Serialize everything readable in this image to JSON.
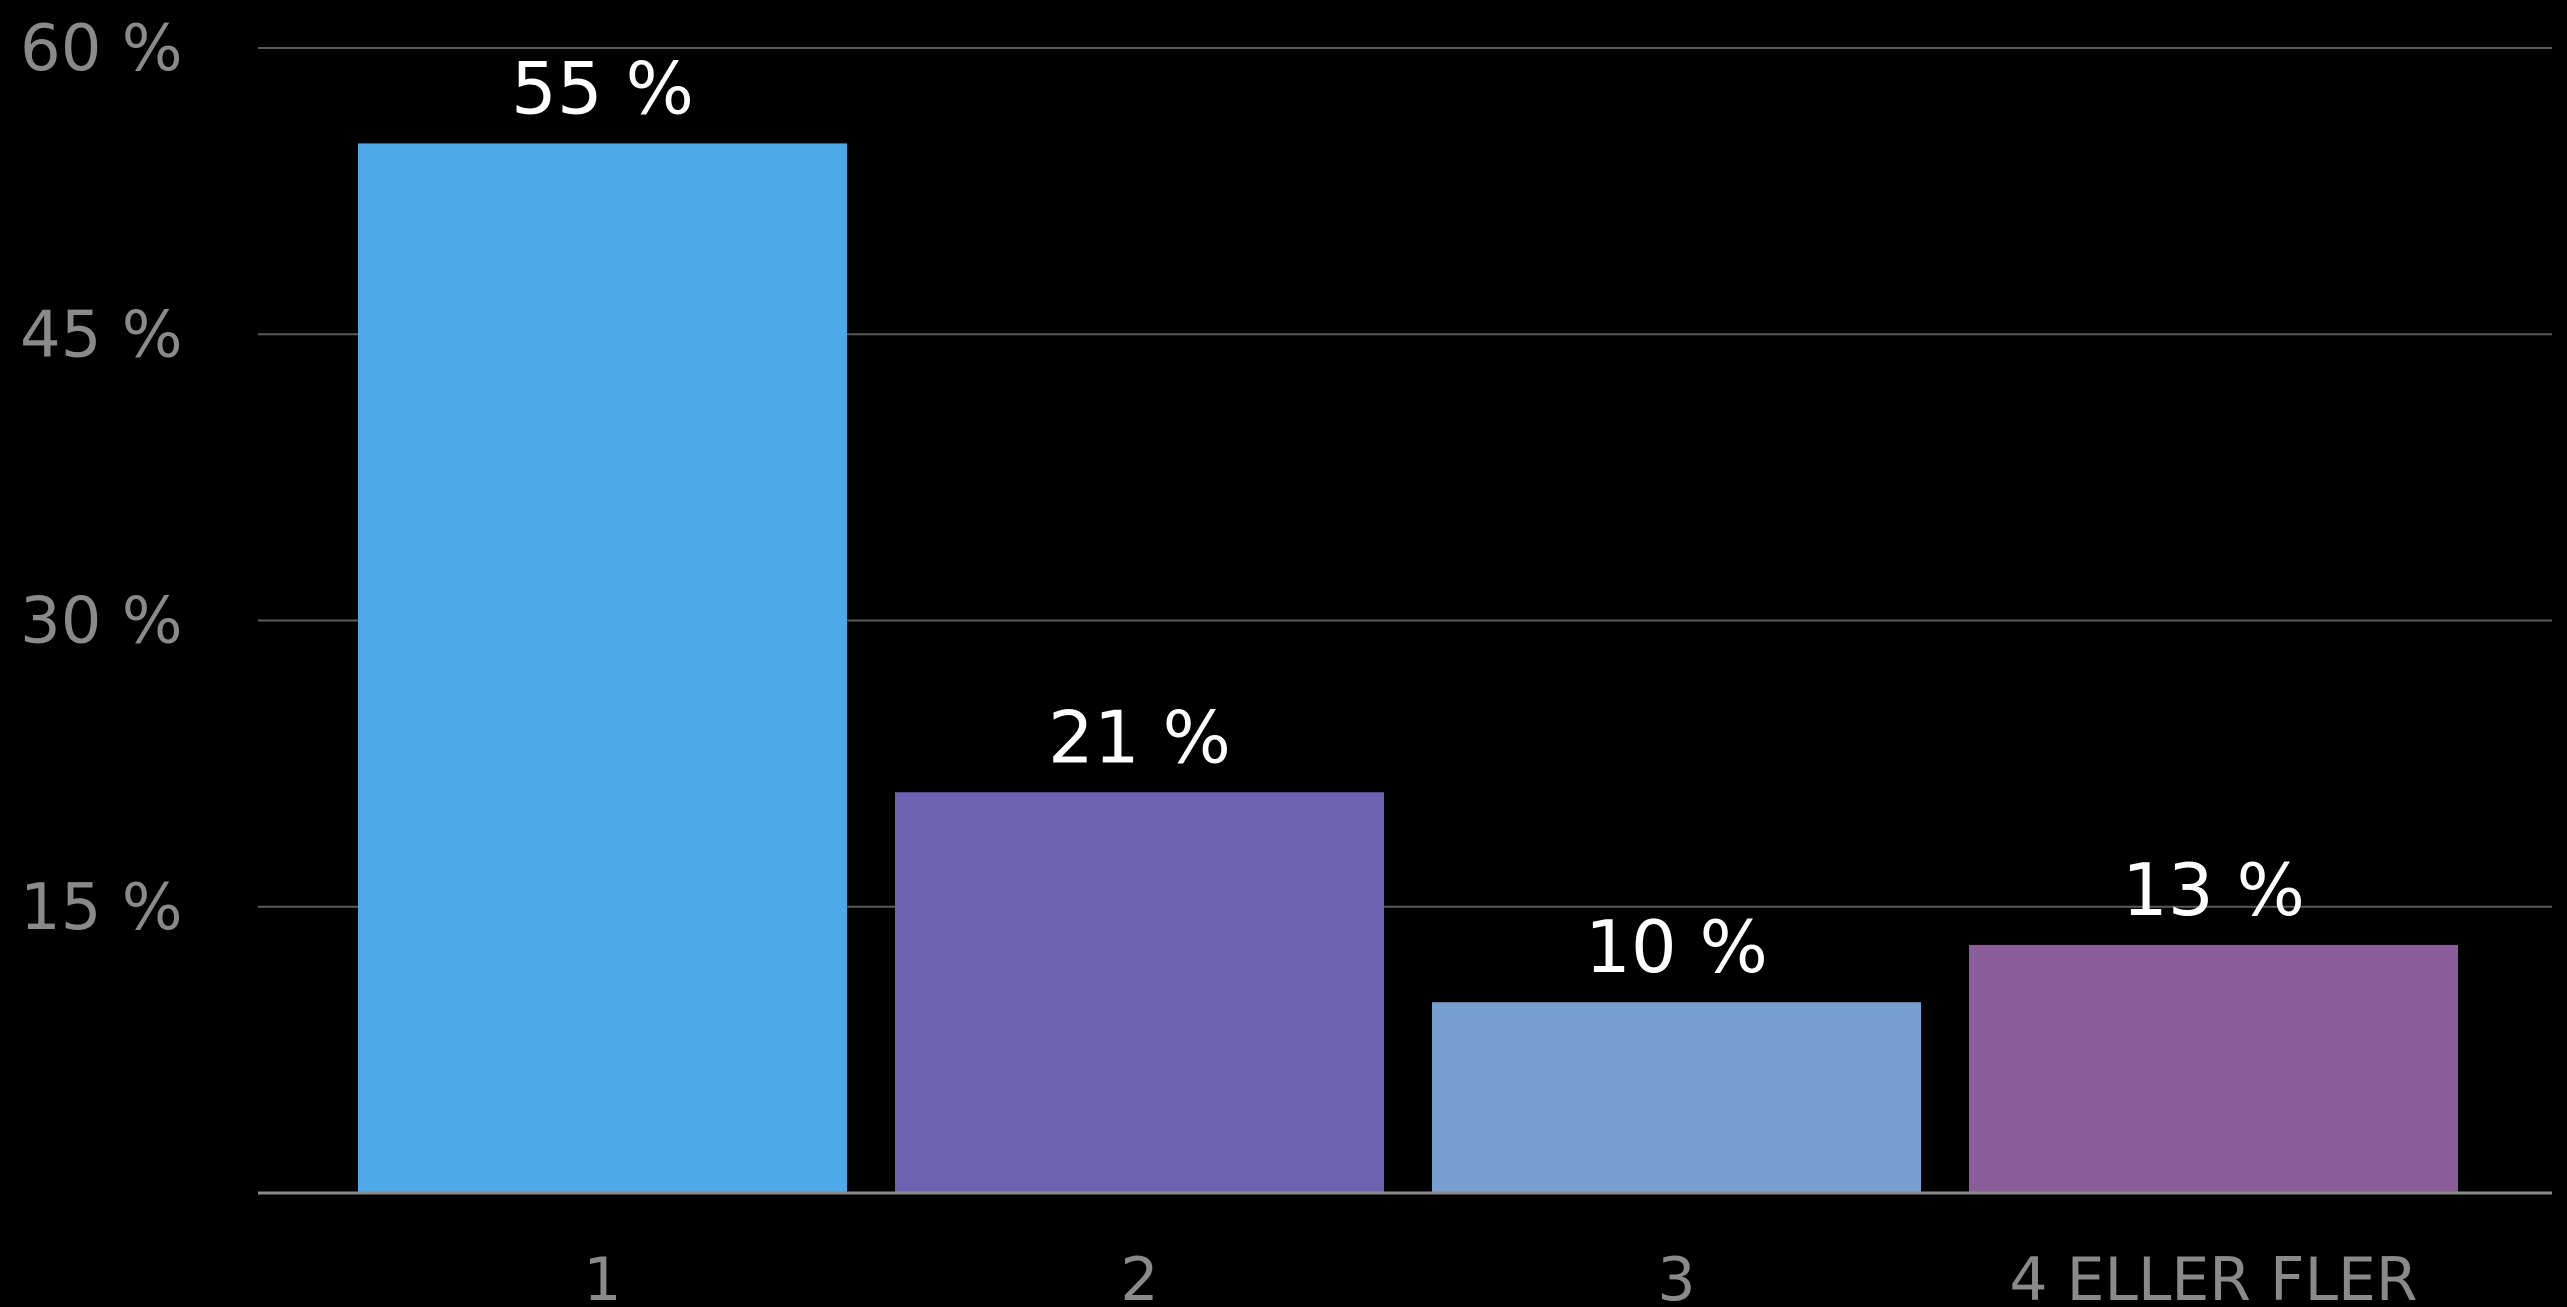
{
  "chart_data": {
    "type": "bar",
    "categories": [
      "1",
      "2",
      "3",
      "4 ELLER FLER"
    ],
    "values": [
      55,
      21,
      10,
      13
    ],
    "data_labels": [
      "55 %",
      "21 %",
      "10 %",
      "13 %"
    ],
    "colors": [
      "#4ea9e8",
      "#6c63b0",
      "#789fd2",
      "#8b5e9b"
    ],
    "ylim": [
      0,
      60
    ],
    "yticks": [
      {
        "value": 15,
        "label": "15 %"
      },
      {
        "value": 30,
        "label": "30 %"
      },
      {
        "value": 45,
        "label": "45 %"
      },
      {
        "value": 60,
        "label": "60 %"
      }
    ],
    "grid": true,
    "legend": "none"
  }
}
